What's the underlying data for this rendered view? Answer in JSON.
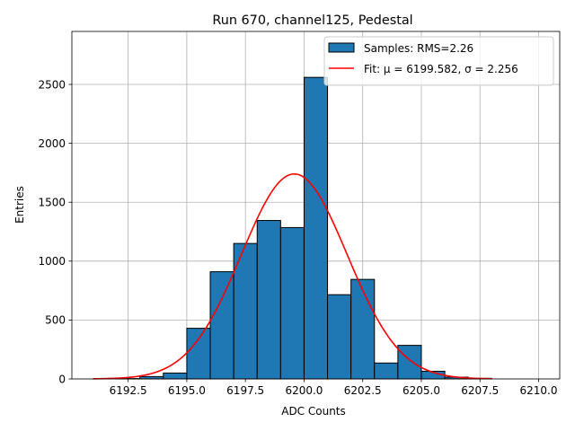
{
  "chart_data": {
    "type": "bar",
    "title": "Run 670, channel125, Pedestal",
    "xlabel": "ADC Counts",
    "ylabel": "Entries",
    "xlim": [
      6190.1,
      6210.9
    ],
    "ylim": [
      0,
      2950
    ],
    "grid": true,
    "legend_position": "top-right",
    "xticks": [
      6192.5,
      6195.0,
      6197.5,
      6200.0,
      6202.5,
      6205.0,
      6207.5,
      6210.0
    ],
    "xtick_labels": [
      "6192.5",
      "6195.0",
      "6197.5",
      "6200.0",
      "6202.5",
      "6205.0",
      "6207.5",
      "6210.0"
    ],
    "yticks": [
      0,
      500,
      1000,
      1500,
      2000,
      2500
    ],
    "ytick_labels": [
      "0",
      "500",
      "1000",
      "1500",
      "2000",
      "2500"
    ],
    "histogram": {
      "name": "Samples: RMS=2.26",
      "color": "#1f77b4",
      "edge_color": "#000000",
      "bin_edges": [
        6191,
        6192,
        6193,
        6194,
        6195,
        6196,
        6197,
        6198,
        6199,
        6200,
        6201,
        6202,
        6203,
        6204,
        6205,
        6206,
        6207,
        6208,
        6209,
        6210
      ],
      "counts": [
        0,
        3,
        20,
        50,
        430,
        910,
        1150,
        1345,
        1285,
        2560,
        715,
        845,
        135,
        285,
        65,
        15,
        5,
        0,
        0
      ]
    },
    "fit": {
      "name": "Fit: μ = 6199.582, σ = 2.256",
      "color": "#ff0000",
      "mu": 6199.582,
      "sigma": 2.256,
      "amplitude": 1740,
      "x_range": [
        6191,
        6208
      ]
    }
  }
}
